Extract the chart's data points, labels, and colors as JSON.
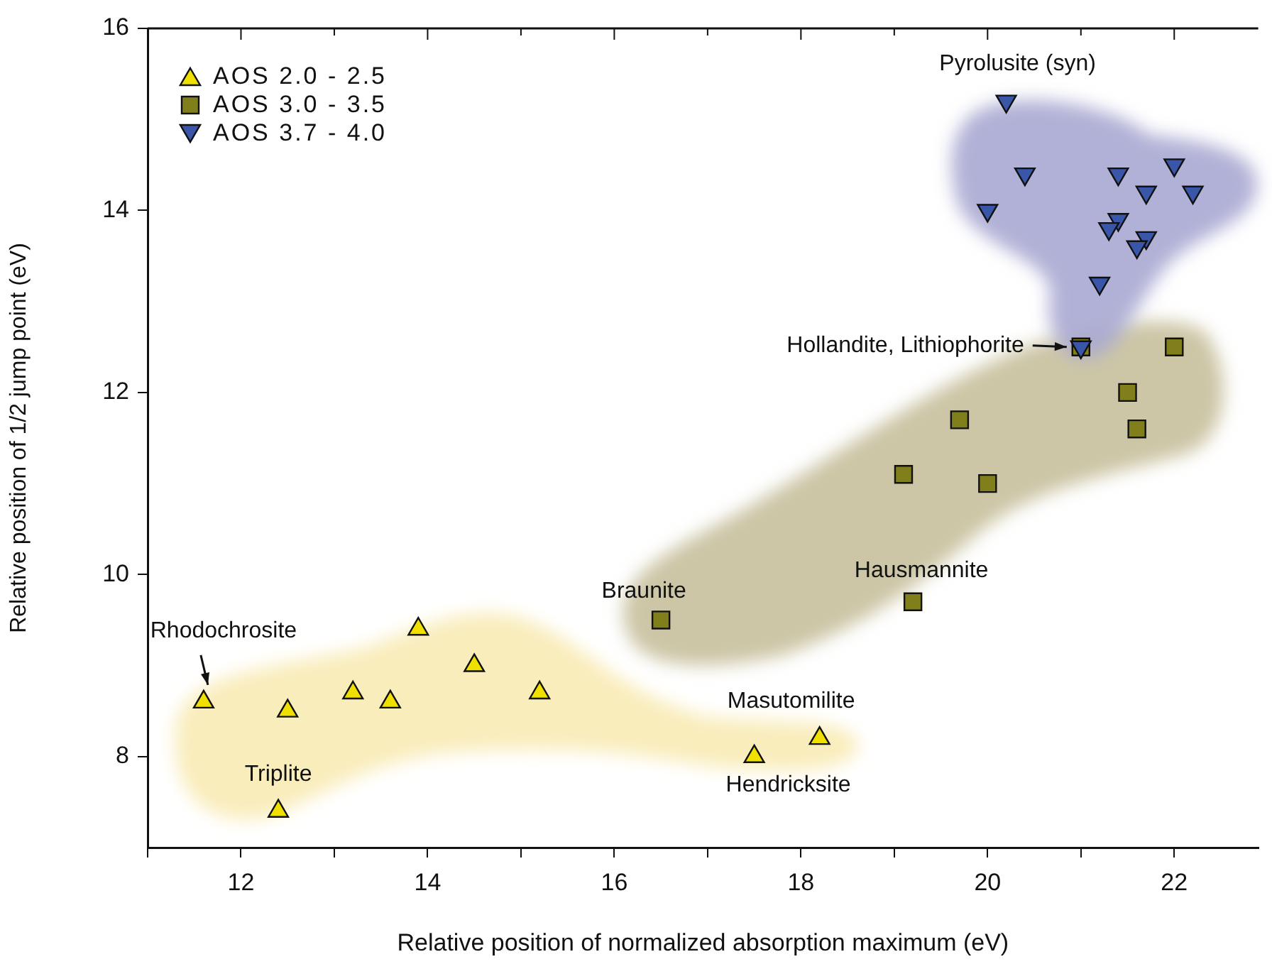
{
  "chart_data": {
    "type": "scatter",
    "xlabel": "Relative position of normalized absorption maximum (eV)",
    "ylabel": "Relative position of 1/2 jump point (eV)",
    "xlim": [
      11,
      22.9
    ],
    "xticks": [
      {
        "value": 11,
        "label": null
      },
      12,
      {
        "value": 13,
        "label": null
      },
      14,
      {
        "value": 15,
        "label": null
      },
      16,
      {
        "value": 17,
        "label": null
      },
      18,
      {
        "value": 19,
        "label": null
      },
      20,
      {
        "value": 21,
        "label": null
      },
      22
    ],
    "ylim": [
      7,
      16
    ],
    "yticks": [
      8,
      10,
      12,
      14,
      16
    ],
    "grid": false,
    "legend": "top left",
    "series": [
      {
        "name": "AOS 2.0 - 2.5",
        "color": "#f0e000",
        "marker": "triangle",
        "x": [
          11.6,
          12.5,
          13.2,
          13.6,
          13.9,
          14.5,
          15.2,
          12.4,
          17.5,
          18.2
        ],
        "values": [
          8.6,
          8.5,
          8.7,
          8.6,
          9.4,
          9.0,
          8.7,
          7.4,
          8.0,
          8.2
        ]
      },
      {
        "name": "AOS 3.0 - 3.5",
        "color": "#807f1c",
        "marker": "square",
        "x": [
          16.5,
          19.2,
          19.1,
          20.0,
          19.7,
          21.5,
          21.6,
          22.0,
          21.0
        ],
        "values": [
          9.5,
          9.7,
          11.1,
          11.0,
          11.7,
          12.0,
          11.6,
          12.5,
          12.5
        ]
      },
      {
        "name": "AOS 3.7 - 4.0",
        "color": "#3a56a8",
        "marker": "triangle-down",
        "x": [
          20.2,
          20.4,
          20.0,
          21.4,
          22.0,
          21.7,
          22.2,
          21.4,
          21.3,
          21.7,
          21.6,
          21.2,
          21.0
        ],
        "values": [
          15.2,
          14.4,
          14.0,
          14.4,
          14.5,
          14.2,
          14.2,
          13.9,
          13.8,
          13.7,
          13.6,
          13.2,
          12.5
        ]
      }
    ],
    "annotations": [
      {
        "text": "Pyrolusite (syn)",
        "x": 20.2,
        "y": 15.2
      },
      {
        "text": "Hollandite, Lithiophorite",
        "x": 21.0,
        "y": 12.5
      },
      {
        "text": "Braunite",
        "x": 16.5,
        "y": 9.5
      },
      {
        "text": "Hausmannite",
        "x": 19.2,
        "y": 9.7
      },
      {
        "text": "Rhodochrosite",
        "x": 11.6,
        "y": 8.6
      },
      {
        "text": "Triplite",
        "x": 12.4,
        "y": 7.4
      },
      {
        "text": "Masutomilite",
        "x": 18.2,
        "y": 8.2
      },
      {
        "text": "Hendricksite",
        "x": 17.5,
        "y": 8.0
      }
    ]
  }
}
